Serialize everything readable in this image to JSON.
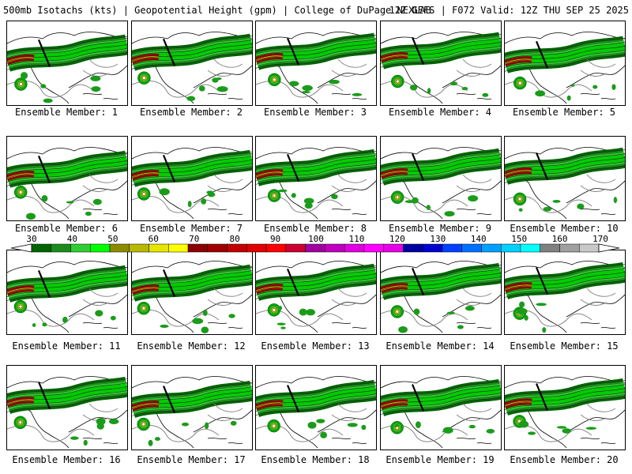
{
  "header": {
    "left": "500mb Isotachs (kts) | Geopotential Height (gpm) | College of DuPage NEXLAB",
    "right": "12Z GEFS | F072 Valid: 12Z THU SEP 25 2025"
  },
  "caption_prefix": "Ensemble Member: ",
  "members": [
    {
      "id": 1,
      "caption": "Ensemble Member: 1"
    },
    {
      "id": 2,
      "caption": "Ensemble Member: 2"
    },
    {
      "id": 3,
      "caption": "Ensemble Member: 3"
    },
    {
      "id": 4,
      "caption": "Ensemble Member: 4"
    },
    {
      "id": 5,
      "caption": "Ensemble Member: 5"
    },
    {
      "id": 6,
      "caption": "Ensemble Member: 6"
    },
    {
      "id": 7,
      "caption": "Ensemble Member: 7"
    },
    {
      "id": 8,
      "caption": "Ensemble Member: 8"
    },
    {
      "id": 9,
      "caption": "Ensemble Member: 9"
    },
    {
      "id": 10,
      "caption": "Ensemble Member: 10"
    },
    {
      "id": 11,
      "caption": "Ensemble Member: 11"
    },
    {
      "id": 12,
      "caption": "Ensemble Member: 12"
    },
    {
      "id": 13,
      "caption": "Ensemble Member: 13"
    },
    {
      "id": 14,
      "caption": "Ensemble Member: 14"
    },
    {
      "id": 15,
      "caption": "Ensemble Member: 15"
    },
    {
      "id": 16,
      "caption": "Ensemble Member: 16"
    },
    {
      "id": 17,
      "caption": "Ensemble Member: 17"
    },
    {
      "id": 18,
      "caption": "Ensemble Member: 18"
    },
    {
      "id": 19,
      "caption": "Ensemble Member: 19"
    },
    {
      "id": 20,
      "caption": "Ensemble Member: 20"
    }
  ],
  "colorbar": {
    "labels": [
      "30",
      "40",
      "50",
      "60",
      "70",
      "80",
      "90",
      "100",
      "110",
      "120",
      "130",
      "140",
      "150",
      "160",
      "170"
    ],
    "colors": [
      "#006400",
      "#1a8c1a",
      "#32cd32",
      "#00ff00",
      "#8b8b00",
      "#b8b800",
      "#e6e600",
      "#ffff00",
      "#8b0000",
      "#a00000",
      "#c00000",
      "#e00000",
      "#ff0000",
      "#cc0033",
      "#a000a0",
      "#c000c0",
      "#e000e0",
      "#ff00ff",
      "#e600e6",
      "#0000a0",
      "#0000d0",
      "#0040ff",
      "#0070ff",
      "#00a0ff",
      "#00d0ff",
      "#00ffff",
      "#808080",
      "#a0a0a0",
      "#c8c8c8"
    ]
  }
}
